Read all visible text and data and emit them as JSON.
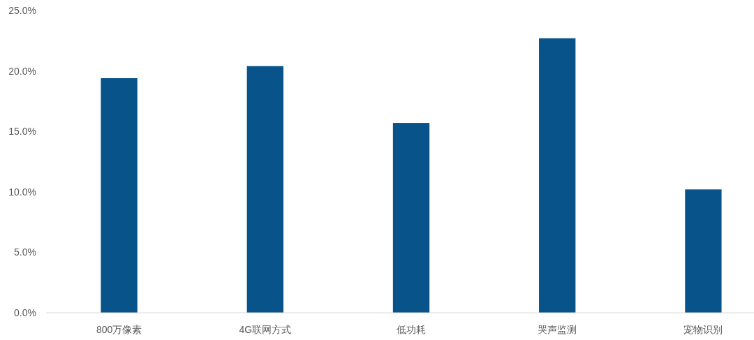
{
  "chart_data": {
    "type": "bar",
    "categories": [
      "800万像素",
      "4G联网方式",
      "低功耗",
      "哭声监测",
      "宠物识别"
    ],
    "values": [
      19.4,
      20.4,
      15.7,
      22.7,
      10.2
    ],
    "color": "#08538a",
    "ylim": [
      0,
      25
    ],
    "yticks": [
      {
        "value": 0,
        "label": "0.0%"
      },
      {
        "value": 5,
        "label": "5.0%"
      },
      {
        "value": 10,
        "label": "10.0%"
      },
      {
        "value": 15,
        "label": "15.0%"
      },
      {
        "value": 20,
        "label": "20.0%"
      },
      {
        "value": 25,
        "label": "25.0%"
      }
    ]
  }
}
